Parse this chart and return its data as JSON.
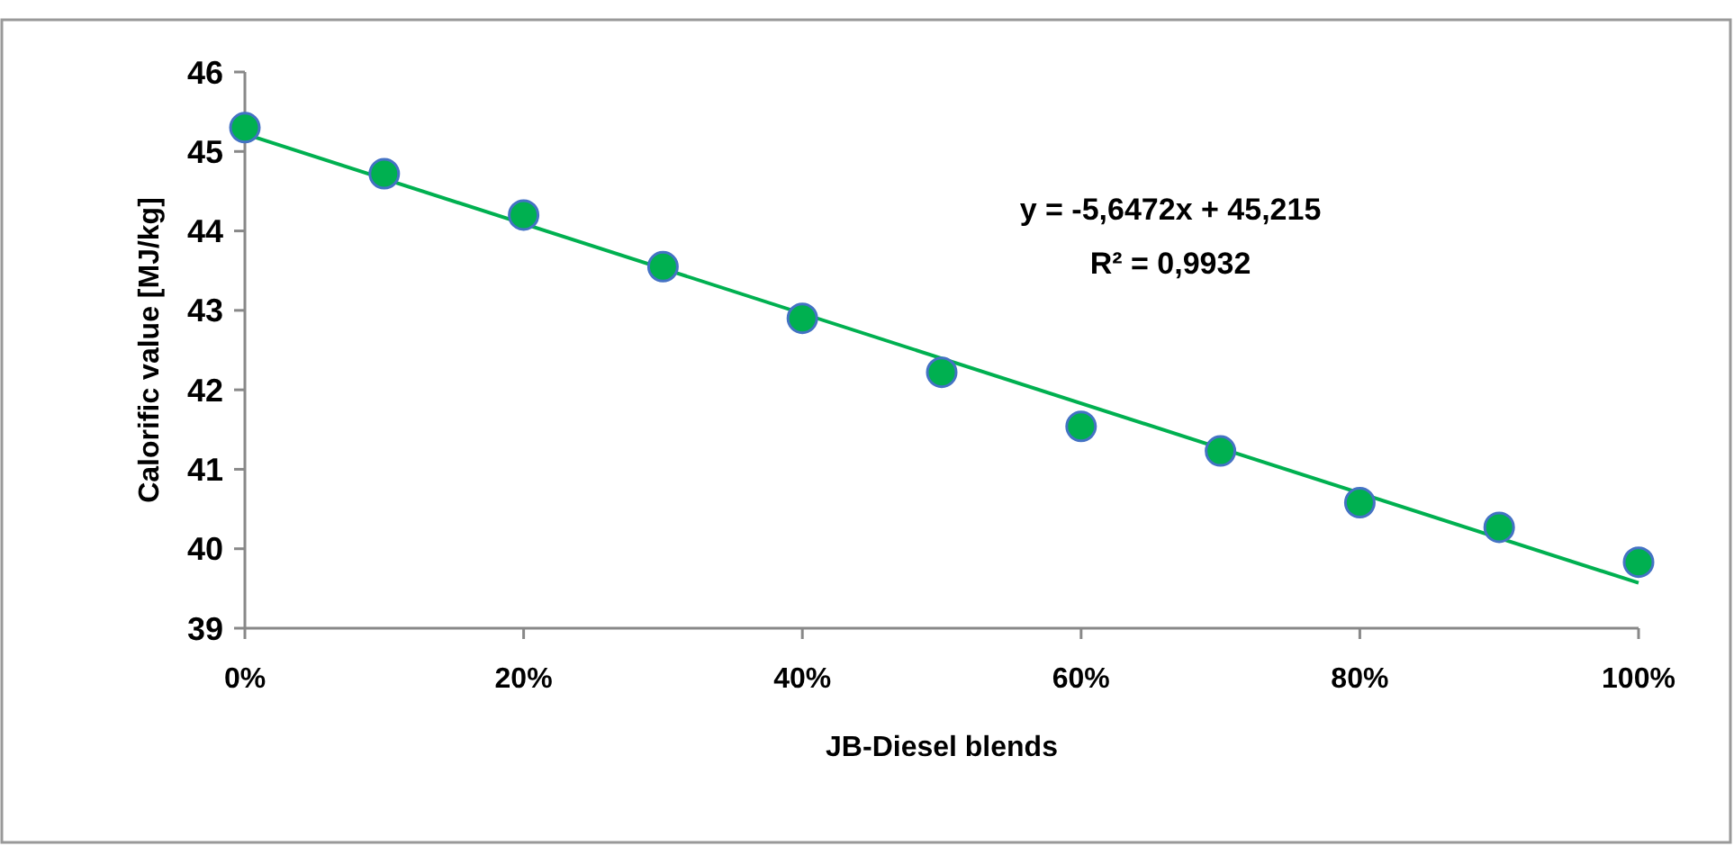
{
  "chart_data": {
    "type": "scatter",
    "xlabel": "JB-Diesel blends",
    "ylabel": "Calorific value [MJ/kg]",
    "x": [
      0,
      0.1,
      0.2,
      0.3,
      0.4,
      0.5,
      0.6,
      0.7,
      0.8,
      0.9,
      1
    ],
    "series": [
      {
        "color": "#00b050",
        "marker": "circle",
        "values": [
          45.3,
          44.72,
          44.2,
          43.55,
          42.9,
          42.22,
          41.54,
          41.23,
          40.58,
          40.27,
          39.83
        ]
      },
      {
        "type": "line",
        "color": "#00b050",
        "x": [
          0,
          1
        ],
        "values": [
          45.22,
          39.57
        ]
      }
    ],
    "xlim": [
      0,
      1
    ],
    "xticks": [
      {
        "value": 0,
        "label": "0%"
      },
      {
        "value": 0.2,
        "label": "20%"
      },
      {
        "value": 0.4,
        "label": "40%"
      },
      {
        "value": 0.6,
        "label": "60%"
      },
      {
        "value": 0.8,
        "label": "80%"
      },
      {
        "value": 1,
        "label": "100%"
      }
    ],
    "ylim": [
      39,
      46
    ],
    "yticks": [
      39,
      40,
      41,
      42,
      43,
      44,
      45,
      46
    ],
    "annotations": [
      "y = -5,6472x + 45,215",
      "R² = 0,9932"
    ]
  }
}
